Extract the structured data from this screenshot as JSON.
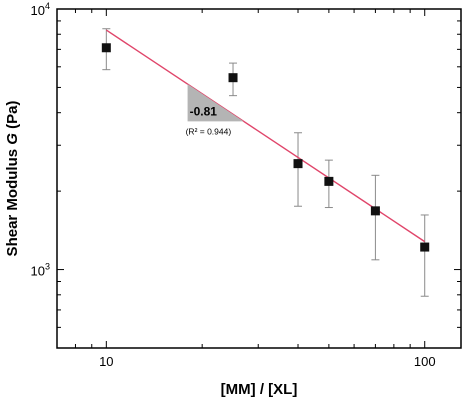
{
  "chart_data": {
    "type": "scatter",
    "xscale": "log",
    "yscale": "log",
    "xlim": [
      7,
      130
    ],
    "ylim": [
      500,
      10000
    ],
    "xlabel": "[MM] / [XL]",
    "ylabel": "Shear Modulus G (Pa)",
    "ylabel_parts": {
      "before": "Shear Modulus ",
      "italic": "G",
      "after": " (Pa)"
    },
    "xticks": [
      {
        "value": 10,
        "label": "10"
      },
      {
        "value": 100,
        "label": "100"
      }
    ],
    "yticks": [
      {
        "value": 1000,
        "base": "10",
        "exp": "3"
      },
      {
        "value": 10000,
        "base": "10",
        "exp": "4"
      }
    ],
    "series": [
      {
        "marker": "square",
        "color": "#111111",
        "errorbar_color": "#8a8a8a",
        "points": [
          {
            "x": 10,
            "y": 7100,
            "y_lower": 5850,
            "y_upper": 8400
          },
          {
            "x": 25,
            "y": 5450,
            "y_lower": 4650,
            "y_upper": 6200
          },
          {
            "x": 40,
            "y": 2550,
            "y_lower": 1750,
            "y_upper": 3350
          },
          {
            "x": 50,
            "y": 2180,
            "y_lower": 1730,
            "y_upper": 2630
          },
          {
            "x": 70,
            "y": 1680,
            "y_lower": 1090,
            "y_upper": 2300
          },
          {
            "x": 100,
            "y": 1220,
            "y_lower": 790,
            "y_upper": 1620
          }
        ]
      }
    ],
    "fit_line": {
      "color": "#e0456a",
      "x": [
        10,
        100
      ],
      "y": [
        8300,
        1280
      ]
    },
    "annotation": {
      "slope_text": "-0.81",
      "r2_text": "(R² = 0.944)",
      "triangle_color": "#b4b4b4"
    },
    "grid": false,
    "legend": "none"
  }
}
